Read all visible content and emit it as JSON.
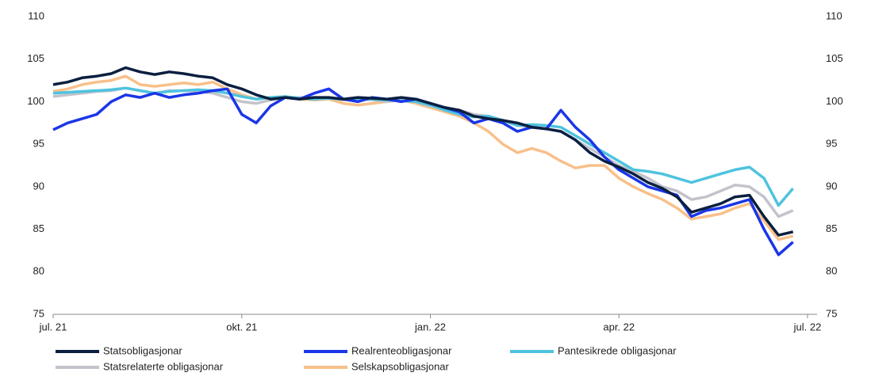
{
  "chart_data": {
    "type": "line",
    "xlim": [
      0,
      52
    ],
    "xticks": [
      {
        "value": 0,
        "label": "jul. 21"
      },
      {
        "value": 13,
        "label": "okt. 21"
      },
      {
        "value": 26,
        "label": "jan. 22"
      },
      {
        "value": 39,
        "label": "apr. 22"
      },
      {
        "value": 52,
        "label": "jul. 22"
      }
    ],
    "ylim": [
      75,
      110
    ],
    "yticks": [
      75,
      80,
      85,
      90,
      95,
      100,
      105,
      110
    ],
    "y2lim": [
      75,
      110
    ],
    "y2ticks": [
      75,
      80,
      85,
      90,
      95,
      100,
      105,
      110
    ],
    "legend": "bottom",
    "series": [
      {
        "name": "Statsobligasjonar",
        "color": "#0b1f3f",
        "values": [
          102,
          102.3,
          102.8,
          103,
          103.3,
          104,
          103.5,
          103.2,
          103.5,
          103.3,
          103,
          102.8,
          102,
          101.5,
          100.8,
          100.3,
          100.5,
          100.3,
          100.5,
          100.5,
          100.3,
          100.5,
          100.4,
          100.3,
          100.5,
          100.3,
          99.8,
          99.3,
          99,
          98.3,
          98,
          97.8,
          97.5,
          97,
          96.8,
          96.5,
          95.5,
          94,
          93,
          92.3,
          91.5,
          90.5,
          89.8,
          88.8,
          87,
          87.5,
          88,
          88.8,
          89,
          86.5,
          84.3,
          84.7
        ]
      },
      {
        "name": "Realrenteobligasjonar",
        "color": "#1a36e8",
        "values": [
          96.7,
          97.5,
          98,
          98.5,
          100,
          100.8,
          100.5,
          101,
          100.5,
          100.8,
          101,
          101.3,
          101.5,
          98.5,
          97.5,
          99.5,
          100.5,
          100.3,
          101,
          101.5,
          100.3,
          100,
          100.5,
          100.3,
          100,
          100.3,
          99.8,
          99.3,
          98.8,
          97.5,
          98,
          97.5,
          96.5,
          97,
          96.8,
          99,
          97,
          95.5,
          93.5,
          92,
          91,
          90,
          89.5,
          89,
          86.5,
          87.2,
          87.5,
          88,
          88.5,
          85,
          82,
          83.5
        ]
      },
      {
        "name": "Pantesikrede obligasjonar",
        "color": "#4ec3df",
        "values": [
          101,
          101.1,
          101.2,
          101.3,
          101.4,
          101.6,
          101.3,
          101,
          101.2,
          101.3,
          101.4,
          101.3,
          101,
          100.6,
          100.3,
          100.5,
          100.6,
          100.4,
          100.3,
          100.4,
          100.3,
          100.4,
          100.3,
          100.2,
          100.1,
          100,
          99.6,
          99,
          98.5,
          98.2,
          98.3,
          97.8,
          97.2,
          97.3,
          97.2,
          97,
          96,
          95,
          94,
          93,
          92,
          91.8,
          91.5,
          91,
          90.5,
          91,
          91.5,
          92,
          92.3,
          91,
          87.8,
          89.8
        ]
      },
      {
        "name": "Statsrelaterte obligasjonar",
        "color": "#c3c3cc",
        "values": [
          100.6,
          100.8,
          101,
          101.2,
          101.3,
          101.6,
          101.3,
          101,
          101.3,
          101.3,
          101.2,
          101,
          100.5,
          100,
          99.8,
          100.2,
          100.5,
          100.5,
          100.5,
          100.4,
          100.2,
          100.3,
          100.2,
          100,
          100.2,
          100,
          99.5,
          99.3,
          99,
          98.5,
          98.3,
          97.8,
          97.2,
          97,
          96.8,
          96.5,
          95.5,
          94.5,
          93.5,
          92.5,
          91.8,
          91,
          90,
          89.5,
          88.5,
          88.8,
          89.5,
          90.2,
          90,
          88.8,
          86.5,
          87.2
        ]
      },
      {
        "name": "Selskapsobligasjonar",
        "color": "#f8c08a",
        "values": [
          101.2,
          101.5,
          102,
          102.3,
          102.5,
          103,
          102,
          101.8,
          102,
          102.2,
          102,
          102.3,
          101.5,
          100.8,
          100.3,
          100.5,
          100.6,
          100.3,
          100.2,
          100.3,
          99.8,
          99.6,
          99.8,
          100,
          100.2,
          99.8,
          99.3,
          98.8,
          98.3,
          97.5,
          96.5,
          95,
          94,
          94.5,
          94,
          93,
          92.2,
          92.5,
          92.5,
          91,
          90,
          89.2,
          88.5,
          87.5,
          86.2,
          86.5,
          86.8,
          87.5,
          88,
          86,
          83.8,
          84.2
        ]
      }
    ]
  }
}
